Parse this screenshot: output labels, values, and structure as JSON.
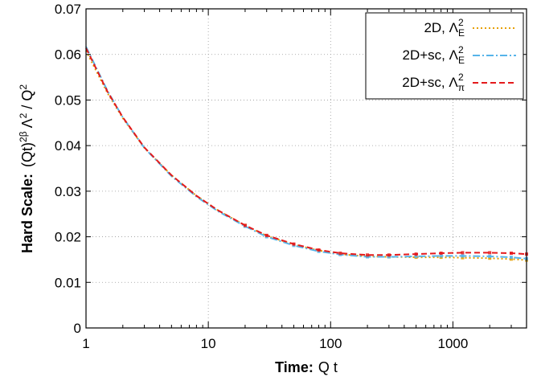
{
  "chart_data": {
    "type": "line",
    "xscale": "log",
    "xlim": [
      1,
      4000
    ],
    "ylim": [
      0,
      0.07
    ],
    "x_ticks": [
      "1",
      "10",
      "100",
      "1000"
    ],
    "y_ticks": [
      "0",
      "0.01",
      "0.02",
      "0.03",
      "0.04",
      "0.05",
      "0.06",
      "0.07"
    ],
    "grid": true,
    "legend_position": "top-right",
    "xlabel": {
      "bold": "Time:",
      "plain": "Q t"
    },
    "ylabel": {
      "bold": "Hard Scale:",
      "plain_prefix": "(Qt)",
      "sup1": "2β",
      "mid": " Λ",
      "sup2": "2",
      "tail": " / Q",
      "sup3": "2"
    },
    "x": [
      1,
      1.5,
      2,
      3,
      5,
      8,
      12,
      20,
      30,
      50,
      80,
      120,
      200,
      300,
      500,
      800,
      1200,
      2000,
      3000,
      4000
    ],
    "series": [
      {
        "name": "2D, Λ",
        "sub": "E",
        "sup": "2",
        "color": "#e69f00",
        "dash": "2,3",
        "values": [
          0.0608,
          0.0515,
          0.046,
          0.0395,
          0.0335,
          0.029,
          0.0258,
          0.0225,
          0.0202,
          0.0183,
          0.017,
          0.0162,
          0.0157,
          0.0156,
          0.0155,
          0.0155,
          0.0154,
          0.0153,
          0.0151,
          0.0149
        ]
      },
      {
        "name": "2D+sc, Λ",
        "sub": "E",
        "sup": "2",
        "color": "#56b4e9",
        "dash": "9,3,2,3",
        "values": [
          0.0617,
          0.052,
          0.0462,
          0.0395,
          0.0333,
          0.0288,
          0.0256,
          0.0223,
          0.02,
          0.0181,
          0.0168,
          0.0161,
          0.0156,
          0.0156,
          0.0157,
          0.0158,
          0.0158,
          0.0157,
          0.0155,
          0.0152
        ]
      },
      {
        "name": "2D+sc, Λ",
        "sub": "π",
        "sup": "2",
        "color": "#e41a1c",
        "dash": "7,4",
        "values": [
          0.0614,
          0.0518,
          0.0462,
          0.0396,
          0.0335,
          0.029,
          0.0258,
          0.0225,
          0.0203,
          0.0184,
          0.0171,
          0.0164,
          0.016,
          0.016,
          0.0162,
          0.0164,
          0.0165,
          0.0165,
          0.0164,
          0.0162
        ]
      }
    ]
  }
}
